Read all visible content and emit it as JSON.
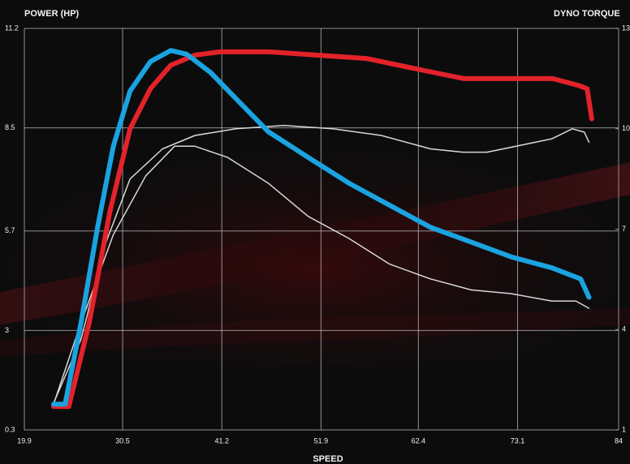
{
  "chart_data": {
    "type": "line",
    "y_label": "POWER (HP)",
    "y2_label": "DYNO TORQUE",
    "x_label": "SPEED",
    "xlim": [
      19.9,
      84.0
    ],
    "xticks": [
      19.9,
      30.5,
      41.2,
      51.9,
      62.4,
      73.1,
      84.0
    ],
    "ylim": [
      0.3,
      11.2
    ],
    "yticks": [
      0.3,
      3.0,
      5.7,
      8.5,
      11.2
    ],
    "y2lim": [
      1,
      13
    ],
    "y2ticks": [
      1,
      4,
      7,
      10,
      13
    ],
    "grid": true,
    "series": [
      {
        "color": "#1aa3e0",
        "width": 6,
        "axis": "y",
        "x": [
          23.05,
          24.3,
          26.0,
          27.8,
          29.5,
          31.3,
          33.5,
          35.7,
          37.4,
          40.0,
          42.7,
          46.2,
          50.5,
          54.9,
          59.3,
          63.7,
          68.1,
          72.4,
          76.8,
          79.9,
          80.8
        ],
        "values": [
          1.0,
          1.0,
          3.2,
          5.8,
          8.0,
          9.5,
          10.3,
          10.6,
          10.5,
          10.0,
          9.3,
          8.4,
          7.7,
          7.0,
          6.4,
          5.8,
          5.4,
          5.0,
          4.7,
          4.4,
          3.9
        ]
      },
      {
        "color": "#e3222a",
        "width": 6,
        "axis": "y2",
        "x": [
          23.05,
          24.7,
          26.9,
          29.1,
          31.3,
          33.5,
          35.7,
          38.3,
          41.0,
          46.3,
          51.5,
          56.8,
          62.0,
          67.3,
          72.6,
          76.9,
          79.6,
          80.6,
          81.1
        ],
        "values": [
          1.7,
          1.7,
          4.2,
          7.5,
          10.0,
          11.2,
          11.9,
          12.2,
          12.3,
          12.3,
          12.2,
          12.1,
          11.8,
          11.5,
          11.5,
          11.5,
          11.3,
          11.2,
          10.3
        ]
      },
      {
        "color": "#d8d8d8",
        "width": 1.5,
        "axis": "y2",
        "x": [
          23.05,
          26.0,
          28.7,
          31.3,
          34.8,
          38.3,
          42.7,
          47.9,
          53.2,
          58.4,
          63.7,
          67.2,
          69.8,
          73.3,
          76.8,
          79.0,
          80.3,
          80.8
        ],
        "values": [
          1.8,
          3.7,
          6.6,
          8.5,
          9.4,
          9.8,
          10.0,
          10.1,
          10.0,
          9.8,
          9.4,
          9.3,
          9.3,
          9.5,
          9.7,
          10.0,
          9.9,
          9.6
        ]
      },
      {
        "color": "#d8d8d8",
        "width": 1.5,
        "axis": "y",
        "x": [
          23.05,
          26.0,
          29.5,
          33.0,
          36.1,
          38.3,
          41.8,
          46.2,
          50.5,
          54.9,
          59.3,
          63.7,
          68.1,
          72.4,
          76.8,
          79.4,
          80.8
        ],
        "values": [
          1.0,
          3.2,
          5.6,
          7.2,
          8.0,
          8.0,
          7.7,
          7.0,
          6.1,
          5.5,
          4.8,
          4.4,
          4.1,
          4.0,
          3.8,
          3.8,
          3.6
        ]
      }
    ]
  }
}
